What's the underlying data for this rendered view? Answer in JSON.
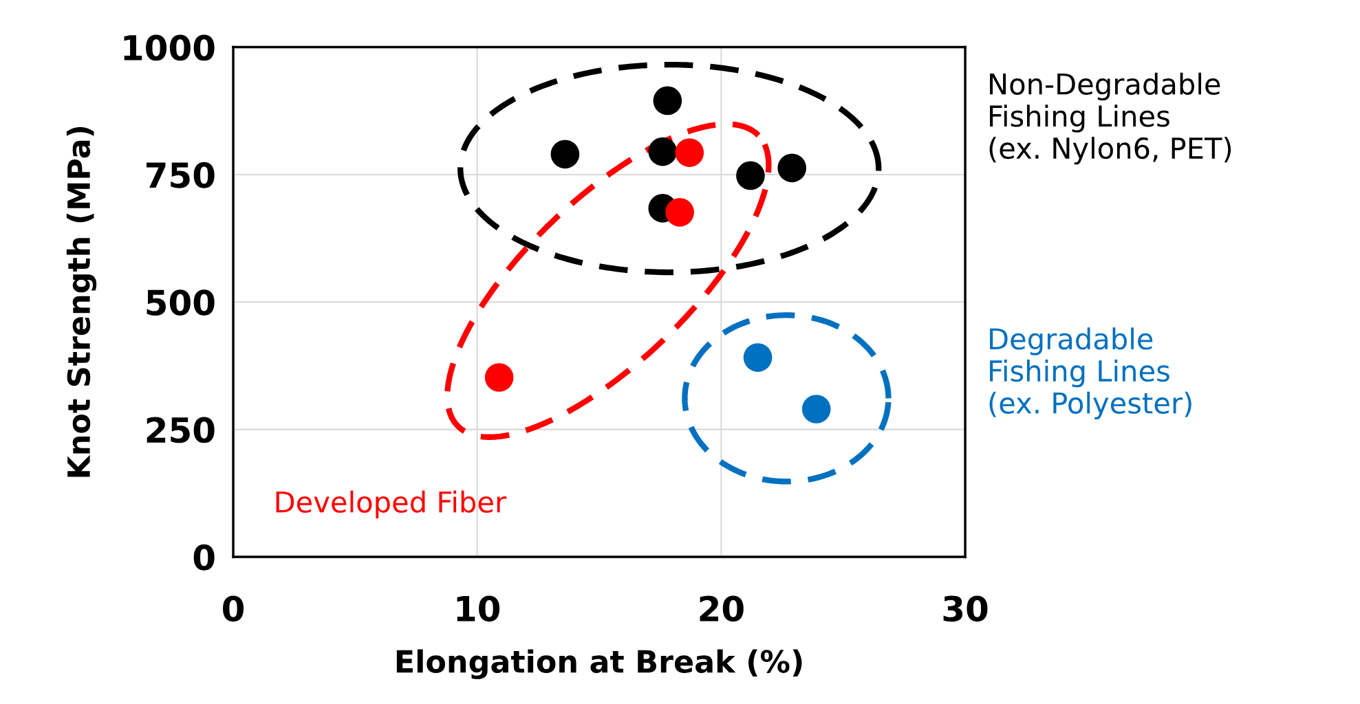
{
  "chart_data": {
    "type": "scatter",
    "xlabel": "Elongation at Break (%)",
    "ylabel": "Knot Strength (MPa)",
    "xlim": [
      0,
      30
    ],
    "xticks": [
      0,
      10,
      20,
      30
    ],
    "ylim": [
      0,
      1000
    ],
    "yticks": [
      0,
      250,
      500,
      750,
      1000
    ],
    "grid": true,
    "marker": "circle",
    "series": [
      {
        "name": "Non-Degradable\nFishing Lines\n(ex. Nylon6, PET)",
        "color": "#000000",
        "x": [
          17.8,
          13.6,
          17.6,
          17.6,
          21.2,
          22.9
        ],
        "values": [
          895,
          790,
          795,
          684,
          748,
          763
        ]
      },
      {
        "name": "Developed Fiber",
        "color": "#ff0000",
        "x": [
          18.7,
          18.3,
          10.9
        ],
        "values": [
          793,
          676,
          352
        ]
      },
      {
        "name": "Degradable\nFishing Lines\n(ex. Polyester)",
        "color": "#0070c0",
        "x": [
          21.5,
          23.9
        ],
        "values": [
          391,
          290
        ]
      }
    ]
  }
}
